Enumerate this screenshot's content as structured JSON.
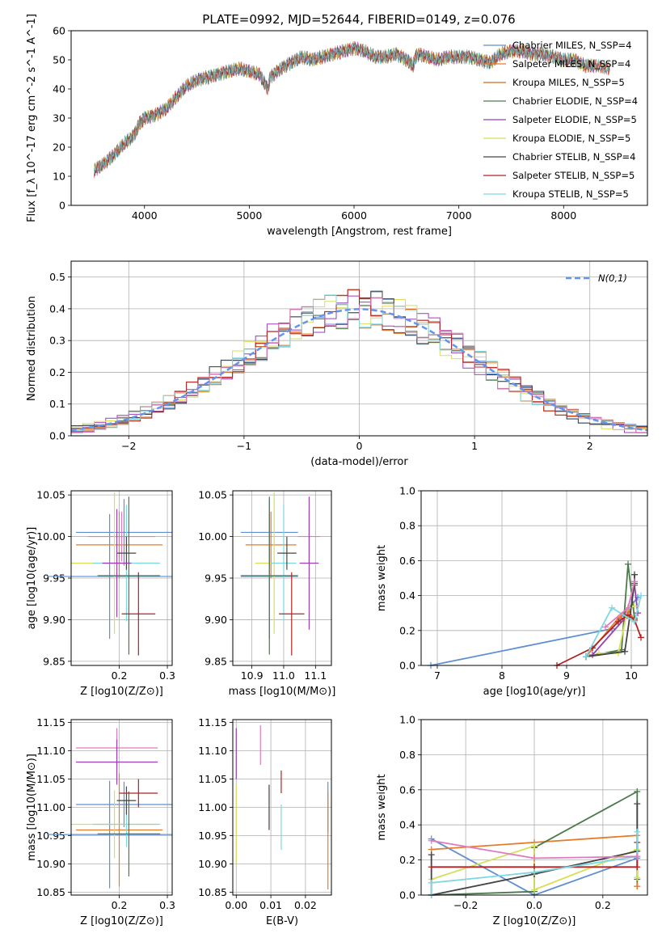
{
  "figure_title": "PLATE=0992, MJD=52644, FIBERID=0149, z=0.076",
  "colors": {
    "chabrier_miles": "#5f8fd0",
    "salpeter_miles": "#e57c2c",
    "kroupa_miles": "#d2691e",
    "chabrier_elodie": "#4a7a4a",
    "salpeter_elodie": "#9b3fb5",
    "kroupa_elodie": "#d7df5a",
    "chabrier_stelib": "#444444",
    "salpeter_stelib": "#b22222",
    "kroupa_stelib": "#7fd7e0",
    "pink": "#e07ac0",
    "normal_curve": "#6495ed",
    "grid": "#b0b0b0"
  },
  "legend_labels": [
    "Chabrier MILES, N_SSP=4",
    "Salpeter MILES, N_SSP=4",
    "Kroupa MILES, N_SSP=5",
    "Chabrier ELODIE, N_SSP=4",
    "Salpeter ELODIE, N_SSP=5",
    "Kroupa ELODIE, N_SSP=5",
    "Chabrier STELIB, N_SSP=4",
    "Salpeter STELIB, N_SSP=5",
    "Kroupa STELIB, N_SSP=5"
  ],
  "chart_data": [
    {
      "id": "spectrum",
      "type": "line",
      "xlabel": "wavelength [Angstrom, rest frame]",
      "ylabel": "Flux [f_λ 10^-17 erg cm^-2 s^-1 A^-1]",
      "xlim": [
        3300,
        8800
      ],
      "ylim": [
        0,
        60
      ],
      "xticks": [
        4000,
        5000,
        6000,
        7000,
        8000
      ],
      "yticks": [
        0,
        10,
        20,
        30,
        40,
        50,
        60
      ],
      "grid": false,
      "legend_position": "right",
      "x": [
        3520,
        3600,
        3700,
        3800,
        3900,
        3950,
        4000,
        4100,
        4200,
        4300,
        4400,
        4500,
        4600,
        4700,
        4800,
        4900,
        5000,
        5100,
        5175,
        5200,
        5300,
        5400,
        5500,
        5600,
        5700,
        5800,
        5900,
        6000,
        6100,
        6200,
        6300,
        6400,
        6500,
        6563,
        6600,
        6700,
        6800,
        6900,
        7000,
        7100,
        7200,
        7300,
        7400,
        7500,
        7600,
        7700,
        7800,
        7900,
        8000,
        8100,
        8200,
        8300,
        8450
      ],
      "y": [
        12,
        14,
        17,
        21,
        24,
        28,
        30,
        31,
        33,
        37,
        41,
        43,
        44,
        45,
        46,
        47,
        46,
        45,
        40,
        44,
        47,
        49,
        51,
        50,
        51,
        52,
        53,
        54,
        53,
        51,
        51,
        52,
        50,
        48,
        52,
        51,
        50,
        51,
        51,
        51,
        50,
        49,
        52,
        53,
        53,
        52,
        52,
        51,
        50,
        50,
        48,
        48,
        47
      ]
    },
    {
      "id": "residuals",
      "type": "bar",
      "xlabel": "(data-model)/error",
      "ylabel": "Normed distribution",
      "xlim": [
        -2.5,
        2.5
      ],
      "ylim": [
        0,
        0.55
      ],
      "xticks": [
        -2,
        -1,
        0,
        1,
        2
      ],
      "yticks": [
        0.0,
        0.1,
        0.2,
        0.3,
        0.4,
        0.5
      ],
      "grid": true,
      "legend_position": "top-right",
      "legend_label": "N(0,1)",
      "bin_width": 0.1
    },
    {
      "id": "age_vs_z",
      "type": "scatter",
      "xlabel": "Z [log10(Z/Z⊙)]",
      "ylabel": "age [log10(age/yr)]",
      "xlim": [
        0.1,
        0.31
      ],
      "ylim": [
        9.845,
        10.055
      ],
      "xticks": [
        0.2,
        0.3
      ],
      "yticks": [
        9.85,
        9.9,
        9.95,
        10.0,
        10.05
      ],
      "grid": true,
      "points": [
        {
          "x": 0.18,
          "y": 9.952,
          "xerr": 0.13,
          "yerr": 0.075,
          "c": "chabrier_miles"
        },
        {
          "x": 0.21,
          "y": 10.005,
          "xerr": 0.1,
          "yerr": 0.04,
          "c": "chabrier_miles"
        },
        {
          "x": 0.2,
          "y": 9.99,
          "xerr": 0.09,
          "yerr": 0.04,
          "c": "salpeter_miles"
        },
        {
          "x": 0.205,
          "y": 10.0,
          "xerr": 0.07,
          "yerr": 0.03,
          "c": "pink"
        },
        {
          "x": 0.19,
          "y": 9.968,
          "xerr": 0.09,
          "yerr": 0.085,
          "c": "kroupa_elodie"
        },
        {
          "x": 0.215,
          "y": 9.968,
          "xerr": 0.07,
          "yerr": 0.07,
          "c": "kroupa_stelib"
        },
        {
          "x": 0.22,
          "y": 9.953,
          "xerr": 0.065,
          "yerr": 0.095,
          "c": "chabrier_elodie"
        },
        {
          "x": 0.215,
          "y": 9.98,
          "xerr": 0.02,
          "yerr": 0.02,
          "c": "chabrier_stelib"
        },
        {
          "x": 0.195,
          "y": 9.968,
          "xerr": 0.03,
          "yerr": 0.065,
          "c": "salpeter_elodie"
        },
        {
          "x": 0.24,
          "y": 9.907,
          "xerr": 0.035,
          "yerr": 0.05,
          "c": "salpeter_stelib"
        }
      ]
    },
    {
      "id": "age_vs_mass",
      "type": "scatter",
      "xlabel": "mass [log10(M/M⊙)]",
      "ylabel": "",
      "xlim": [
        10.84,
        11.15
      ],
      "ylim": [
        9.845,
        10.055
      ],
      "xticks": [
        10.9,
        11.0,
        11.1
      ],
      "yticks": [
        9.85,
        9.9,
        9.95,
        10.0,
        10.05
      ],
      "grid": true,
      "points": [
        {
          "x": 10.955,
          "y": 9.952,
          "xerr": 0.09,
          "yerr": 0.075,
          "c": "chabrier_miles"
        },
        {
          "x": 10.955,
          "y": 10.005,
          "xerr": 0.09,
          "yerr": 0.04,
          "c": "chabrier_miles"
        },
        {
          "x": 10.96,
          "y": 9.99,
          "xerr": 0.08,
          "yerr": 0.04,
          "c": "salpeter_miles"
        },
        {
          "x": 11.08,
          "y": 10.0,
          "xerr": 0.035,
          "yerr": 0.03,
          "c": "pink"
        },
        {
          "x": 10.97,
          "y": 9.968,
          "xerr": 0.06,
          "yerr": 0.085,
          "c": "kroupa_elodie"
        },
        {
          "x": 11.0,
          "y": 9.968,
          "xerr": 0.04,
          "yerr": 0.07,
          "c": "kroupa_stelib"
        },
        {
          "x": 10.955,
          "y": 9.953,
          "xerr": 0.09,
          "yerr": 0.095,
          "c": "chabrier_elodie"
        },
        {
          "x": 11.01,
          "y": 9.98,
          "xerr": 0.03,
          "yerr": 0.02,
          "c": "chabrier_stelib"
        },
        {
          "x": 11.08,
          "y": 9.968,
          "xerr": 0.03,
          "yerr": 0.08,
          "c": "salpeter_elodie"
        },
        {
          "x": 11.025,
          "y": 9.907,
          "xerr": 0.04,
          "yerr": 0.05,
          "c": "salpeter_stelib"
        }
      ]
    },
    {
      "id": "weight_vs_age",
      "type": "line",
      "xlabel": "age [log10(age/yr)]",
      "ylabel": "mass weight",
      "xlim": [
        6.75,
        10.25
      ],
      "ylim": [
        0,
        1.0
      ],
      "xticks": [
        7,
        8,
        9,
        10
      ],
      "yticks": [
        0.0,
        0.2,
        0.4,
        0.6,
        0.8,
        1.0
      ],
      "grid": true,
      "series": [
        {
          "c": "chabrier_miles",
          "x": [
            6.9,
            9.7,
            10.1
          ],
          "y": [
            0.0,
            0.21,
            0.39
          ]
        },
        {
          "c": "salpeter_miles",
          "x": [
            9.3,
            9.8,
            9.95,
            10.05
          ],
          "y": [
            0.05,
            0.27,
            0.32,
            0.26
          ]
        },
        {
          "c": "chabrier_elodie",
          "x": [
            9.3,
            9.85,
            9.95,
            10.05
          ],
          "y": [
            0.05,
            0.09,
            0.58,
            0.27
          ]
        },
        {
          "c": "salpeter_elodie",
          "x": [
            9.4,
            9.9,
            10.05,
            10.1
          ],
          "y": [
            0.06,
            0.27,
            0.46,
            0.3
          ]
        },
        {
          "c": "kroupa_elodie",
          "x": [
            9.5,
            9.8,
            9.95,
            10.05
          ],
          "y": [
            0.07,
            0.07,
            0.33,
            0.34
          ]
        },
        {
          "c": "chabrier_stelib",
          "x": [
            9.3,
            9.9,
            10.05,
            10.05
          ],
          "y": [
            0.05,
            0.08,
            0.47,
            0.52
          ]
        },
        {
          "c": "salpeter_stelib",
          "x": [
            8.85,
            9.4,
            9.8,
            9.95,
            10.05,
            10.15
          ],
          "y": [
            0.0,
            0.1,
            0.25,
            0.29,
            0.26,
            0.16
          ]
        },
        {
          "c": "kroupa_stelib",
          "x": [
            9.3,
            9.7,
            10.05,
            10.15
          ],
          "y": [
            0.05,
            0.33,
            0.25,
            0.4
          ]
        },
        {
          "c": "pink",
          "x": [
            9.6,
            9.95,
            10.05
          ],
          "y": [
            0.22,
            0.33,
            0.48
          ]
        }
      ]
    },
    {
      "id": "mass_vs_z",
      "type": "scatter",
      "xlabel": "Z [log10(Z/Z⊙)]",
      "ylabel": "mass [log10(M/M⊙)]",
      "xlim": [
        0.1,
        0.31
      ],
      "ylim": [
        10.845,
        11.155
      ],
      "xticks": [
        0.2,
        0.3
      ],
      "yticks": [
        10.85,
        10.9,
        10.95,
        11.0,
        11.05,
        11.1,
        11.15
      ],
      "grid": true,
      "points": [
        {
          "x": 0.18,
          "y": 10.952,
          "xerr": 0.13,
          "yerr": 0.095,
          "c": "chabrier_miles"
        },
        {
          "x": 0.21,
          "y": 11.005,
          "xerr": 0.1,
          "yerr": 0.04,
          "c": "chabrier_miles"
        },
        {
          "x": 0.2,
          "y": 10.96,
          "xerr": 0.09,
          "yerr": 0.1,
          "c": "salpeter_miles"
        },
        {
          "x": 0.195,
          "y": 11.105,
          "xerr": 0.085,
          "yerr": 0.035,
          "c": "pink"
        },
        {
          "x": 0.19,
          "y": 10.97,
          "xerr": 0.09,
          "yerr": 0.06,
          "c": "kroupa_elodie"
        },
        {
          "x": 0.215,
          "y": 10.97,
          "xerr": 0.07,
          "yerr": 0.04,
          "c": "kroupa_stelib"
        },
        {
          "x": 0.22,
          "y": 10.953,
          "xerr": 0.065,
          "yerr": 0.075,
          "c": "chabrier_elodie"
        },
        {
          "x": 0.215,
          "y": 11.012,
          "xerr": 0.02,
          "yerr": 0.025,
          "c": "chabrier_stelib"
        },
        {
          "x": 0.195,
          "y": 11.08,
          "xerr": 0.085,
          "yerr": 0.04,
          "c": "salpeter_elodie"
        },
        {
          "x": 0.24,
          "y": 11.025,
          "xerr": 0.04,
          "yerr": 0.025,
          "c": "salpeter_stelib"
        }
      ]
    },
    {
      "id": "mass_vs_ebv",
      "type": "scatter",
      "xlabel": "E(B-V)",
      "ylabel": "",
      "xlim": [
        -0.001,
        0.0275
      ],
      "ylim": [
        10.845,
        11.155
      ],
      "xticks": [
        0.0,
        0.01,
        0.02
      ],
      "yticks": [
        10.85,
        10.9,
        10.95,
        11.0,
        11.05,
        11.1,
        11.15
      ],
      "grid": true,
      "points": [
        {
          "x": 0.0,
          "y": 11.095,
          "xerr": 0,
          "yerr": 0.045,
          "c": "salpeter_elodie"
        },
        {
          "x": 0.0,
          "y": 10.97,
          "xerr": 0,
          "yerr": 0.07,
          "c": "kroupa_elodie"
        },
        {
          "x": 0.007,
          "y": 11.11,
          "xerr": 0,
          "yerr": 0.035,
          "c": "pink"
        },
        {
          "x": 0.0095,
          "y": 11.0,
          "xerr": 0,
          "yerr": 0.04,
          "c": "chabrier_stelib"
        },
        {
          "x": 0.013,
          "y": 11.045,
          "xerr": 0,
          "yerr": 0.02,
          "c": "salpeter_stelib"
        },
        {
          "x": 0.013,
          "y": 10.965,
          "xerr": 0,
          "yerr": 0.04,
          "c": "kroupa_stelib"
        },
        {
          "x": 0.0265,
          "y": 11.0,
          "xerr": 0,
          "yerr": 0.045,
          "c": "chabrier_miles"
        },
        {
          "x": 0.0265,
          "y": 10.94,
          "xerr": 0,
          "yerr": 0.085,
          "c": "salpeter_miles"
        }
      ]
    },
    {
      "id": "weight_vs_z",
      "type": "line",
      "xlabel": "Z [log10(Z/Z⊙)]",
      "ylabel": "mass weight",
      "xlim": [
        -0.33,
        0.33
      ],
      "ylim": [
        0,
        1.0
      ],
      "xticks": [
        -0.2,
        0.0,
        0.2
      ],
      "yticks": [
        0.0,
        0.2,
        0.4,
        0.6,
        0.8,
        1.0
      ],
      "grid": true,
      "series": [
        {
          "c": "chabrier_miles",
          "x": [
            -0.3,
            0.0,
            0.3,
            0.3
          ],
          "y": [
            0.32,
            0.0,
            0.21,
            0.05
          ]
        },
        {
          "c": "salpeter_miles",
          "x": [
            -0.3,
            0.0,
            0.3,
            0.3
          ],
          "y": [
            0.26,
            0.3,
            0.34,
            0.05
          ]
        },
        {
          "c": "chabrier_elodie",
          "x": [
            -0.3,
            0.0,
            0.0,
            0.3,
            0.3
          ],
          "y": [
            0.0,
            0.02,
            0.27,
            0.59,
            0.09
          ]
        },
        {
          "c": "kroupa_elodie",
          "x": [
            -0.3,
            0.0,
            0.0,
            0.3,
            0.3
          ],
          "y": [
            0.09,
            0.28,
            0.03,
            0.26,
            0.1
          ]
        },
        {
          "c": "chabrier_stelib",
          "x": [
            -0.3,
            -0.3,
            0.0,
            0.3,
            0.3
          ],
          "y": [
            0.23,
            0.0,
            0.12,
            0.25,
            0.52
          ]
        },
        {
          "c": "salpeter_stelib",
          "x": [
            -0.3,
            0.0,
            0.3,
            0.3
          ],
          "y": [
            0.16,
            0.16,
            0.16,
            0.3
          ]
        },
        {
          "c": "kroupa_stelib",
          "x": [
            -0.3,
            -0.3,
            0.0,
            0.3,
            0.3
          ],
          "y": [
            0.0,
            0.07,
            0.13,
            0.22,
            0.36
          ]
        },
        {
          "c": "pink",
          "x": [
            -0.3,
            0.0,
            0.3
          ],
          "y": [
            0.31,
            0.21,
            0.22
          ]
        }
      ]
    }
  ]
}
